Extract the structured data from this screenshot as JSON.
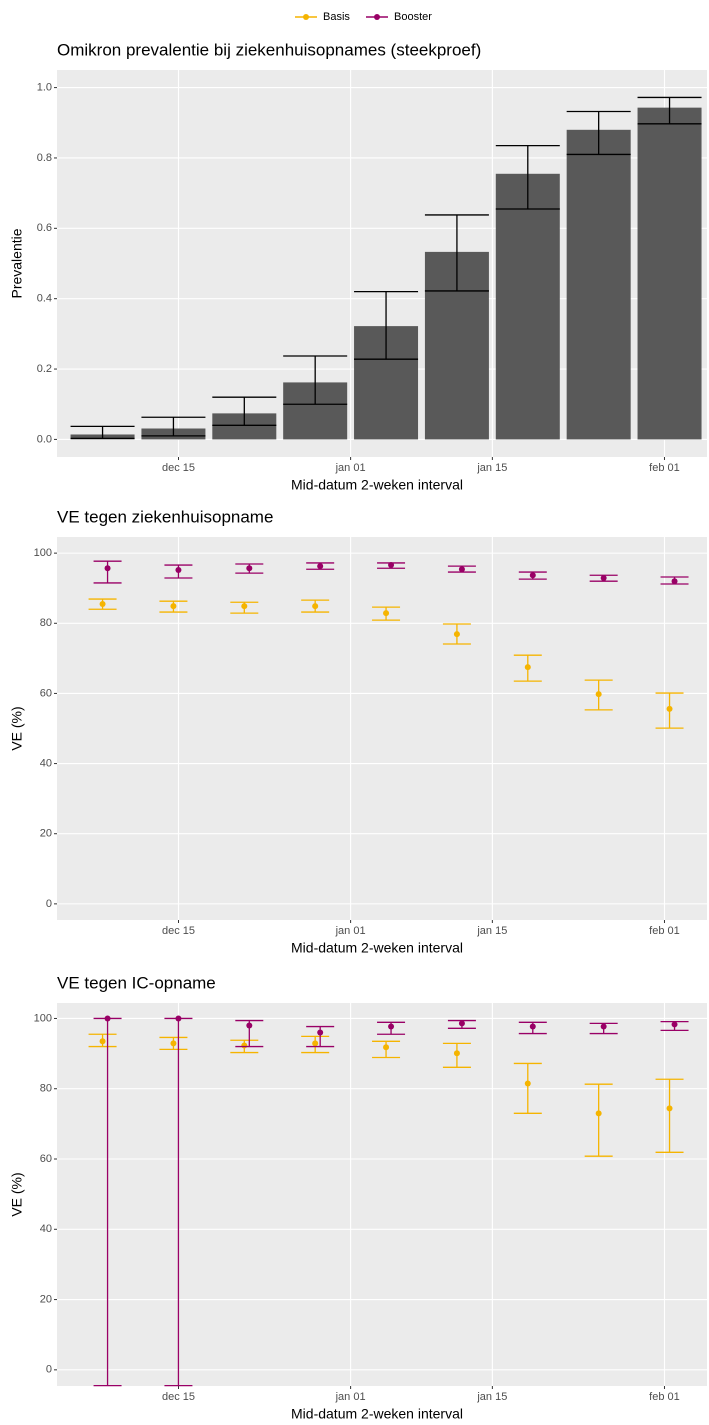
{
  "legend": [
    {
      "name": "Basis",
      "color": "#f5b400"
    },
    {
      "name": "Booster",
      "color": "#990066"
    }
  ],
  "chart_data": [
    {
      "type": "bar",
      "title": "Omikron prevalentie bij ziekenhuisopnames (steekproef)",
      "x_label": "Mid-datum 2-weken interval",
      "y_label": "Prevalentie",
      "x": [
        6.5,
        13.5,
        20.5,
        27.5,
        34.5,
        41.5,
        48.5,
        55.5,
        62.5
      ],
      "values": [
        0.014,
        0.031,
        0.074,
        0.162,
        0.322,
        0.533,
        0.755,
        0.88,
        0.943
      ],
      "lower": [
        0.003,
        0.01,
        0.04,
        0.1,
        0.228,
        0.422,
        0.655,
        0.81,
        0.897
      ],
      "upper": [
        0.037,
        0.063,
        0.12,
        0.237,
        0.42,
        0.638,
        0.835,
        0.932,
        0.972
      ],
      "color": "#595959",
      "error_color": "#000000",
      "xlim": [
        2,
        66.2
      ],
      "xticks": [
        {
          "value": 14,
          "label": "dec 15"
        },
        {
          "value": 31,
          "label": "jan 01"
        },
        {
          "value": 45,
          "label": "jan 15"
        },
        {
          "value": 62,
          "label": "feb 01"
        }
      ],
      "ylim": [
        -0.05,
        1.05
      ],
      "yticks": [
        {
          "value": 0,
          "label": "0.0"
        },
        {
          "value": 0.2,
          "label": "0.2"
        },
        {
          "value": 0.4,
          "label": "0.4"
        },
        {
          "value": 0.6,
          "label": "0.6"
        },
        {
          "value": 0.8,
          "label": "0.8"
        },
        {
          "value": 1,
          "label": "1.0"
        }
      ],
      "grid": true
    },
    {
      "type": "errorbar",
      "title": "VE tegen ziekenhuisopname",
      "x_label": "Mid-datum 2-weken interval",
      "y_label": "VE (%)",
      "x": [
        6.5,
        13.5,
        20.5,
        27.5,
        34.5,
        41.5,
        48.5,
        55.5,
        62.5
      ],
      "series": [
        {
          "color": "#f5b400",
          "values": [
            85.5,
            84.9,
            84.9,
            84.9,
            82.9,
            76.9,
            67.5,
            59.8,
            55.6
          ],
          "lower": [
            84.0,
            83.2,
            82.9,
            83.2,
            80.9,
            74.1,
            63.5,
            55.3,
            50.1
          ],
          "upper": [
            86.9,
            86.3,
            86.0,
            86.6,
            84.6,
            79.8,
            70.9,
            63.8,
            60.1
          ]
        },
        {
          "color": "#990066",
          "values": [
            95.7,
            95.2,
            95.7,
            96.3,
            96.6,
            95.4,
            93.7,
            92.9,
            92.0
          ],
          "lower": [
            91.5,
            92.9,
            94.3,
            95.4,
            95.7,
            94.6,
            92.6,
            92.0,
            91.2
          ],
          "upper": [
            97.7,
            96.6,
            96.9,
            97.2,
            97.2,
            96.3,
            94.6,
            93.7,
            93.2
          ]
        }
      ],
      "xlim": [
        2,
        66.2
      ],
      "xticks": [
        {
          "value": 14,
          "label": "dec 15"
        },
        {
          "value": 31,
          "label": "jan 01"
        },
        {
          "value": 45,
          "label": "jan 15"
        },
        {
          "value": 62,
          "label": "feb 01"
        }
      ],
      "ylim": [
        -4.6,
        104.6
      ],
      "yticks": [
        0,
        20,
        40,
        60,
        80,
        100
      ],
      "grid": true
    },
    {
      "type": "errorbar",
      "title": "VE tegen IC-opname",
      "x_label": "Mid-datum 2-weken interval",
      "y_label": "VE (%)",
      "x": [
        6.5,
        13.5,
        20.5,
        27.5,
        34.5,
        41.5,
        48.5,
        55.5,
        62.5
      ],
      "series": [
        {
          "color": "#f5b400",
          "values": [
            93.5,
            92.9,
            92.3,
            92.9,
            91.8,
            90.1,
            81.5,
            73.0,
            74.4
          ],
          "lower": [
            92.0,
            91.2,
            90.3,
            90.3,
            88.9,
            86.1,
            73.0,
            60.8,
            61.9
          ],
          "upper": [
            95.5,
            94.6,
            93.8,
            94.9,
            93.5,
            92.9,
            87.2,
            81.3,
            82.7
          ]
        },
        {
          "color": "#990066",
          "values": [
            100,
            100,
            98.0,
            96.0,
            97.7,
            98.6,
            97.7,
            97.7,
            98.3
          ],
          "lower": [
            -4.5,
            -4.5,
            92.0,
            92.0,
            95.5,
            97.2,
            95.7,
            95.7,
            96.6
          ],
          "upper": [
            100,
            100,
            99.4,
            97.7,
            98.9,
            99.4,
            98.9,
            98.6,
            99.1
          ]
        }
      ],
      "xlim": [
        2,
        66.2
      ],
      "xticks": [
        {
          "value": 14,
          "label": "dec 15"
        },
        {
          "value": 31,
          "label": "jan 01"
        },
        {
          "value": 45,
          "label": "jan 15"
        },
        {
          "value": 62,
          "label": "feb 01"
        }
      ],
      "ylim": [
        -4.6,
        104.4
      ],
      "yticks": [
        0,
        20,
        40,
        60,
        80,
        100
      ],
      "grid": true
    }
  ]
}
